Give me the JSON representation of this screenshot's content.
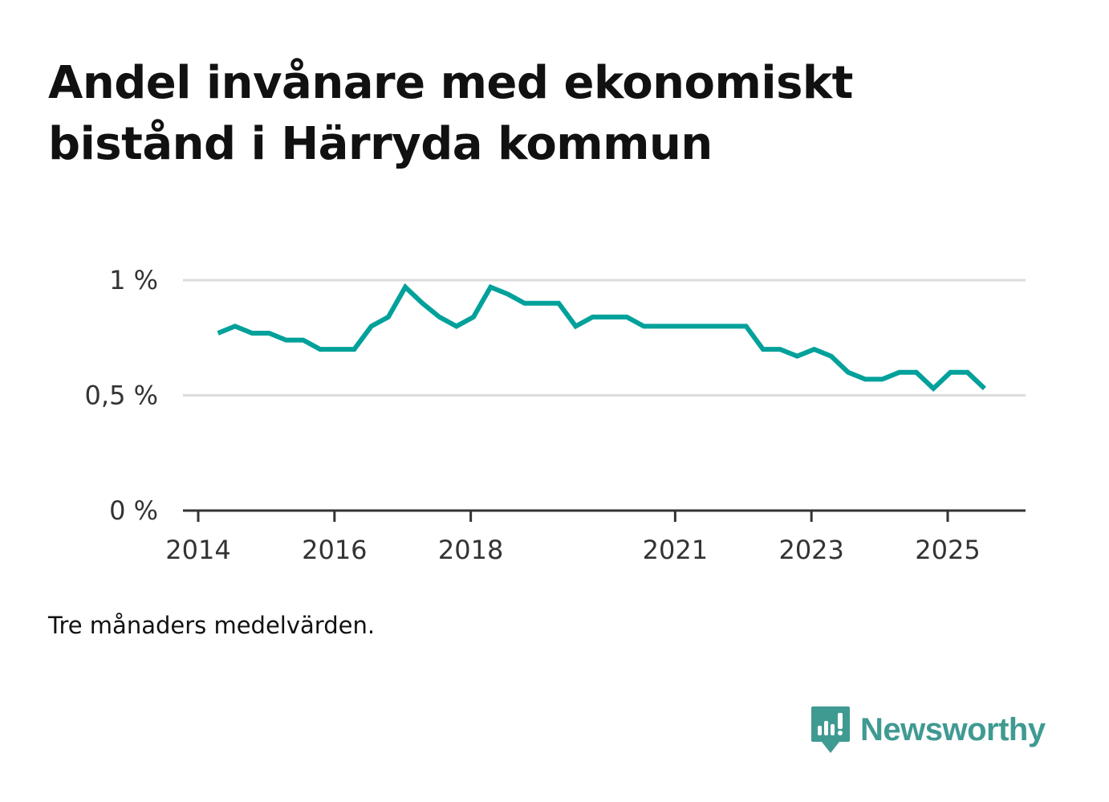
{
  "title": "Andel invånare med ekonomiskt bistånd i Härryda kommun",
  "note": "Tre månaders medelvärden.",
  "brand": "Newsworthy",
  "colors": {
    "line": "#00a19a",
    "grid": "#dddddd",
    "axis": "#333333",
    "brand": "#3f9a92"
  },
  "chart_data": {
    "type": "line",
    "title": "Andel invånare med ekonomiskt bistånd i Härryda kommun",
    "xlabel": "",
    "ylabel": "",
    "ylim": [
      0,
      1.0
    ],
    "yticks": [
      {
        "value": 0,
        "label": "0 %"
      },
      {
        "value": 0.5,
        "label": "0,5 %"
      },
      {
        "value": 1,
        "label": "1 %"
      }
    ],
    "xlim": [
      2014.0,
      2026.1
    ],
    "xticks": [
      {
        "value": 2014,
        "label": "2014"
      },
      {
        "value": 2016,
        "label": "2016"
      },
      {
        "value": 2018,
        "label": "2018"
      },
      {
        "value": 2021,
        "label": "2021"
      },
      {
        "value": 2023,
        "label": "2023"
      },
      {
        "value": 2025,
        "label": "2025"
      }
    ],
    "grid": true,
    "series": [
      {
        "name": "Andel invånare med ekonomiskt bistånd",
        "x": [
          2014.29,
          2014.54,
          2014.79,
          2015.04,
          2015.29,
          2015.54,
          2015.79,
          2016.04,
          2016.29,
          2016.54,
          2016.79,
          2017.04,
          2017.29,
          2017.54,
          2017.79,
          2018.04,
          2018.29,
          2018.54,
          2018.79,
          2019.04,
          2019.29,
          2019.54,
          2019.79,
          2020.04,
          2020.29,
          2020.54,
          2020.79,
          2021.04,
          2021.29,
          2021.54,
          2021.79,
          2022.04,
          2022.29,
          2022.54,
          2022.79,
          2023.04,
          2023.29,
          2023.54,
          2023.79,
          2024.04,
          2024.29,
          2024.54,
          2024.79,
          2025.04,
          2025.29,
          2025.54
        ],
        "values": [
          0.77,
          0.8,
          0.77,
          0.77,
          0.74,
          0.74,
          0.7,
          0.7,
          0.7,
          0.8,
          0.84,
          0.97,
          0.9,
          0.84,
          0.8,
          0.84,
          0.97,
          0.94,
          0.9,
          0.9,
          0.9,
          0.8,
          0.84,
          0.84,
          0.84,
          0.8,
          0.8,
          0.8,
          0.8,
          0.8,
          0.8,
          0.8,
          0.7,
          0.7,
          0.67,
          0.7,
          0.67,
          0.6,
          0.57,
          0.57,
          0.6,
          0.6,
          0.53,
          0.6,
          0.6,
          0.53
        ]
      }
    ]
  }
}
